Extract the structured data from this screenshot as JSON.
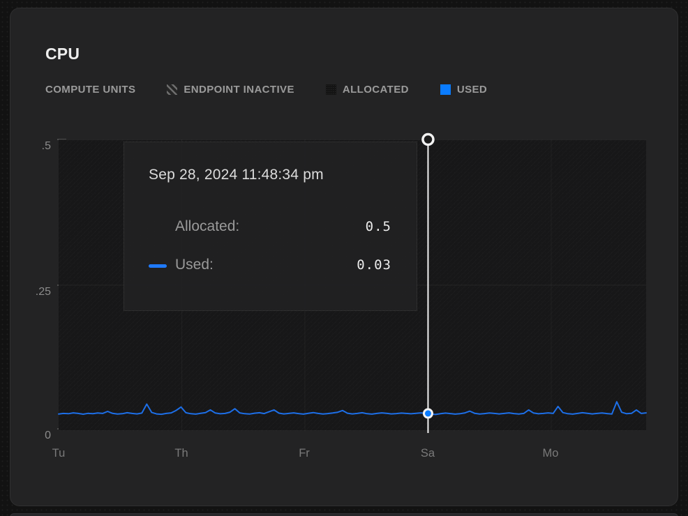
{
  "card": {
    "title": "CPU"
  },
  "legend": {
    "units_label": "COMPUTE UNITS",
    "items": [
      {
        "label": "ENDPOINT INACTIVE",
        "icon": "hatch-square-icon"
      },
      {
        "label": "ALLOCATED",
        "icon": "dark-square-icon"
      },
      {
        "label": "USED",
        "icon": "blue-square-icon",
        "color": "#0a7cff"
      }
    ]
  },
  "axes": {
    "y_ticks": [
      ".5",
      ".25",
      "0"
    ],
    "x_ticks": [
      "Tu",
      "Th",
      "Fr",
      "Sa",
      "Mo"
    ]
  },
  "tooltip": {
    "timestamp": "Sep 28, 2024 11:48:34 pm",
    "rows": [
      {
        "label": "Allocated:",
        "value": "0.5"
      },
      {
        "label": "Used:",
        "value": "0.03"
      }
    ]
  },
  "chart_data": {
    "type": "line",
    "title": "CPU",
    "ylabel": "COMPUTE UNITS",
    "ylim": [
      0,
      0.5
    ],
    "y_tick_values": [
      0.5,
      0.25,
      0
    ],
    "x_categories": [
      "Tu",
      "Th",
      "Fr",
      "Sa",
      "Mo"
    ],
    "grid": "on",
    "legend_position": "top",
    "series": [
      {
        "name": "Allocated",
        "type": "constant-area",
        "value": 0.5,
        "color": "#141414"
      },
      {
        "name": "Used",
        "type": "line",
        "color": "#1d6fe8",
        "values": [
          0.029,
          0.03,
          0.0295,
          0.031,
          0.03,
          0.0287,
          0.0302,
          0.0296,
          0.0308,
          0.03,
          0.0335,
          0.0302,
          0.029,
          0.0296,
          0.0312,
          0.03,
          0.0292,
          0.0306,
          0.046,
          0.0318,
          0.0292,
          0.0286,
          0.03,
          0.031,
          0.0352,
          0.041,
          0.0312,
          0.0295,
          0.0288,
          0.0302,
          0.0315,
          0.036,
          0.0308,
          0.0294,
          0.03,
          0.0322,
          0.038,
          0.031,
          0.0296,
          0.0289,
          0.0304,
          0.0312,
          0.0298,
          0.033,
          0.036,
          0.0305,
          0.0292,
          0.03,
          0.031,
          0.0298,
          0.0288,
          0.0302,
          0.0314,
          0.03,
          0.029,
          0.0298,
          0.0308,
          0.032,
          0.035,
          0.0304,
          0.0292,
          0.03,
          0.0312,
          0.0296,
          0.0288,
          0.03,
          0.031,
          0.0302,
          0.0292,
          0.0298,
          0.0306,
          0.03,
          0.0294,
          0.0302,
          0.031,
          0.03,
          0.029,
          0.0282,
          0.0296,
          0.0306,
          0.0298,
          0.0288,
          0.0296,
          0.031,
          0.034,
          0.0302,
          0.029,
          0.0298,
          0.0308,
          0.03,
          0.0292,
          0.03,
          0.031,
          0.0298,
          0.029,
          0.03,
          0.036,
          0.0308,
          0.0294,
          0.03,
          0.031,
          0.03,
          0.042,
          0.0315,
          0.0296,
          0.0288,
          0.03,
          0.0312,
          0.0302,
          0.0292,
          0.03,
          0.0308,
          0.0298,
          0.029,
          0.05,
          0.032,
          0.0295,
          0.0302,
          0.036,
          0.03,
          0.031
        ]
      }
    ],
    "crosshair": {
      "category": "Sa",
      "category_index": 3,
      "timestamp": "Sep 28, 2024 11:48:34 pm",
      "allocated": 0.5,
      "used": 0.03
    }
  },
  "colors": {
    "page_bg": "#121212",
    "card_bg": "#232324",
    "plot_bg": "#171718",
    "tooltip_bg": "#212122",
    "accent_blue": "#0a7cff",
    "line_blue": "#1d6fe8",
    "crosshair_white": "#f2f2f2",
    "text_primary": "#eeeeee",
    "text_muted": "#9b9b9b",
    "axis_text": "#7d7d7d"
  }
}
